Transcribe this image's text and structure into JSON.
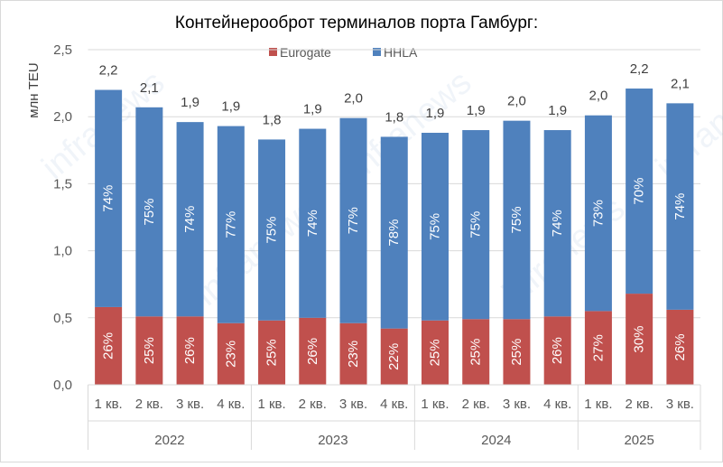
{
  "chart_data": {
    "type": "bar",
    "stacked": true,
    "title": "Контейнерооброт терминалов порта Гамбург:",
    "ylabel": "млн TEU",
    "xlabel": "",
    "ylim": [
      0,
      2.5
    ],
    "yticks": [
      "0,0",
      "0,5",
      "1,0",
      "1,5",
      "2,0",
      "2,5"
    ],
    "grid": true,
    "legend_position": "top-right",
    "categories": [
      "1 кв.",
      "2 кв.",
      "3 кв.",
      "4 кв.",
      "1 кв.",
      "2 кв.",
      "3 кв.",
      "4 кв.",
      "1 кв.",
      "2 кв.",
      "3 кв.",
      "4 кв.",
      "1 кв.",
      "2 кв.",
      "3 кв."
    ],
    "groups": [
      {
        "label": "2022",
        "count": 4
      },
      {
        "label": "2023",
        "count": 4
      },
      {
        "label": "2024",
        "count": 4
      },
      {
        "label": "2025",
        "count": 3
      }
    ],
    "series": [
      {
        "name": "Eurogate",
        "color": "#c0504d",
        "values": [
          0.58,
          0.51,
          0.51,
          0.46,
          0.48,
          0.5,
          0.46,
          0.42,
          0.48,
          0.49,
          0.49,
          0.51,
          0.55,
          0.68,
          0.56
        ],
        "labels": [
          "26%",
          "25%",
          "26%",
          "23%",
          "25%",
          "26%",
          "23%",
          "22%",
          "25%",
          "25%",
          "25%",
          "26%",
          "27%",
          "30%",
          "26%"
        ]
      },
      {
        "name": "HHLA",
        "color": "#4f81bd",
        "values": [
          1.62,
          1.56,
          1.45,
          1.47,
          1.35,
          1.41,
          1.53,
          1.43,
          1.4,
          1.41,
          1.48,
          1.39,
          1.46,
          1.53,
          1.54
        ],
        "labels": [
          "74%",
          "75%",
          "74%",
          "77%",
          "75%",
          "74%",
          "77%",
          "78%",
          "75%",
          "75%",
          "75%",
          "74%",
          "73%",
          "70%",
          "74%"
        ]
      }
    ],
    "totals": [
      "2,2",
      "2,1",
      "1,9",
      "1,9",
      "1,8",
      "1,9",
      "2,0",
      "1,8",
      "1,9",
      "1,9",
      "2,0",
      "1,9",
      "2,0",
      "2,2",
      "2,1"
    ],
    "watermark": "infranews"
  }
}
